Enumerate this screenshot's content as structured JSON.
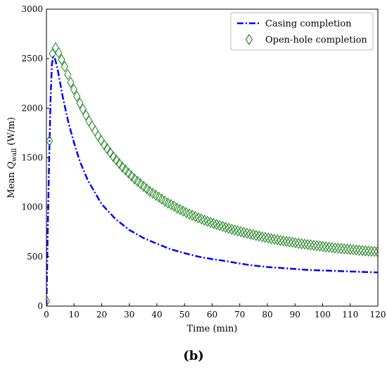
{
  "panel_label": "(b)",
  "chart_data": {
    "type": "line",
    "title": "",
    "xlabel": "Time (min)",
    "ylabel_prefix": "Mean ",
    "ylabel_symbol": "Q",
    "ylabel_subscript": "wall",
    "ylabel_suffix": " (W/m)",
    "xlim": [
      0,
      120
    ],
    "ylim": [
      0,
      3000
    ],
    "xticks": [
      0,
      10,
      20,
      30,
      40,
      50,
      60,
      70,
      80,
      90,
      100,
      110,
      120
    ],
    "yticks": [
      0,
      500,
      1000,
      1500,
      2000,
      2500,
      3000
    ],
    "grid": false,
    "legend_position": "top-right",
    "series": [
      {
        "name": "Casing completion",
        "style": "dash-dot line",
        "color": "#0000ff",
        "x": [
          0,
          0.5,
          1,
          1.5,
          2,
          2.5,
          3,
          4,
          5,
          6,
          8,
          10,
          12,
          15,
          20,
          25,
          30,
          35,
          40,
          45,
          50,
          55,
          60,
          65,
          70,
          75,
          80,
          85,
          90,
          95,
          100,
          105,
          110,
          115,
          120
        ],
        "y": [
          0,
          800,
          1500,
          2100,
          2450,
          2520,
          2510,
          2400,
          2250,
          2100,
          1850,
          1650,
          1470,
          1270,
          1030,
          880,
          770,
          690,
          630,
          575,
          535,
          500,
          475,
          455,
          430,
          410,
          395,
          385,
          375,
          365,
          360,
          355,
          350,
          345,
          340
        ]
      },
      {
        "name": "Open-hole completion",
        "style": "diamond markers",
        "color": "#2e8b2e",
        "x": [
          0,
          1.1,
          2.2,
          3.3,
          4.4,
          5.5,
          6.6,
          7.7,
          8.8,
          9.9,
          11,
          12.1,
          13.2,
          14.3,
          15.4,
          16.5,
          17.6,
          18.7,
          19.8,
          20.9,
          22,
          23.1,
          24.2,
          25.3,
          26.4,
          27.5,
          28.6,
          29.7,
          30.8,
          31.9,
          33,
          34.1,
          35.2,
          36.3,
          37.4,
          38.5,
          39.6,
          40.7,
          41.8,
          42.9,
          44,
          45.1,
          46.2,
          47.3,
          48.4,
          49.5,
          50.6,
          51.7,
          52.8,
          53.9,
          55,
          56.1,
          57.2,
          58.3,
          59.4,
          60.5,
          61.6,
          62.7,
          63.8,
          64.9,
          66,
          67.1,
          68.2,
          69.3,
          70.4,
          71.5,
          72.6,
          73.7,
          74.8,
          75.9,
          77,
          78.1,
          79.2,
          80.3,
          81.4,
          82.5,
          83.6,
          84.7,
          85.8,
          86.9,
          88,
          89.1,
          90.2,
          91.3,
          92.4,
          93.5,
          94.6,
          95.7,
          96.8,
          97.9,
          99,
          100.1,
          101.2,
          102.3,
          103.4,
          104.5,
          105.6,
          106.7,
          107.8,
          108.9,
          110,
          111.1,
          112.2,
          113.3,
          114.4,
          115.5,
          116.6,
          117.7,
          118.8,
          119.9
        ],
        "y": [
          50,
          1670,
          2550,
          2610,
          2560,
          2490,
          2420,
          2340,
          2260,
          2190,
          2120,
          2050,
          1990,
          1930,
          1870,
          1820,
          1770,
          1720,
          1675,
          1630,
          1590,
          1550,
          1510,
          1475,
          1440,
          1405,
          1375,
          1345,
          1315,
          1285,
          1260,
          1235,
          1210,
          1185,
          1160,
          1140,
          1120,
          1100,
          1080,
          1060,
          1040,
          1025,
          1010,
          990,
          975,
          960,
          945,
          930,
          918,
          905,
          892,
          880,
          868,
          857,
          846,
          835,
          825,
          815,
          805,
          795,
          786,
          777,
          768,
          760,
          752,
          744,
          736,
          728,
          721,
          714,
          707,
          700,
          694,
          688,
          682,
          676,
          670,
          664,
          659,
          654,
          649,
          644,
          639,
          634,
          630,
          626,
          622,
          618,
          614,
          610,
          606,
          602,
          598,
          594,
          591,
          588,
          585,
          582,
          579,
          576,
          573,
          570,
          567,
          564,
          561,
          558,
          556,
          554,
          552,
          550
        ]
      }
    ]
  }
}
